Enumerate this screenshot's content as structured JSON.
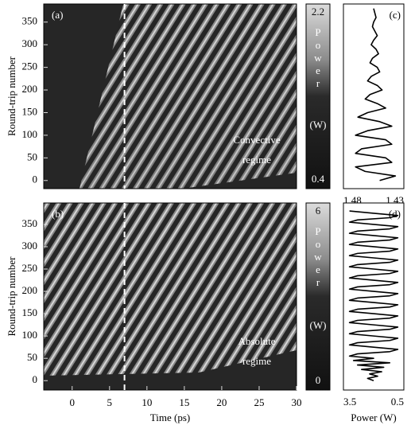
{
  "chart_data": [
    {
      "type": "heatmap",
      "panel_label": "(a)",
      "ylabel": "Round-trip number",
      "xlim": [
        -3.8,
        30
      ],
      "ylim": [
        -18,
        390
      ],
      "yticks": [
        0,
        50,
        100,
        150,
        200,
        250,
        300,
        350
      ],
      "vline": 7,
      "annotation": [
        "Convective",
        "regime"
      ],
      "colorbar": {
        "label": "Power",
        "unit": "(W)",
        "lim": [
          0.4,
          2.2
        ],
        "ticks": [
          2.2,
          0.4
        ]
      }
    },
    {
      "type": "line",
      "panel_label": "(c)",
      "color": "#000000",
      "xlim": [
        1.48,
        1.43
      ],
      "xticks": [
        1.48,
        1.43
      ],
      "ylim": [
        -18,
        390
      ],
      "y": [
        0,
        10,
        20,
        30,
        40,
        50,
        60,
        70,
        80,
        90,
        100,
        110,
        120,
        130,
        140,
        150,
        160,
        170,
        180,
        190,
        200,
        210,
        220,
        230,
        240,
        250,
        260,
        270,
        280,
        290,
        300,
        310,
        320,
        330,
        340,
        350,
        360,
        370,
        380
      ],
      "values": [
        1.45,
        1.437,
        1.462,
        1.47,
        1.44,
        1.445,
        1.47,
        1.465,
        1.44,
        1.445,
        1.47,
        1.46,
        1.44,
        1.45,
        1.468,
        1.46,
        1.445,
        1.452,
        1.462,
        1.458,
        1.448,
        1.452,
        1.46,
        1.457,
        1.45,
        1.452,
        1.458,
        1.456,
        1.451,
        1.453,
        1.457,
        1.455,
        1.452,
        1.454,
        1.456,
        1.455,
        1.453,
        1.454,
        1.455
      ]
    },
    {
      "type": "heatmap",
      "panel_label": "(b)",
      "ylabel": "Round-trip number",
      "xlabel": "Time (ps)",
      "xlim": [
        -3.8,
        30
      ],
      "xticks": [
        0,
        5,
        10,
        15,
        20,
        25,
        30
      ],
      "ylim": [
        -21,
        398
      ],
      "yticks": [
        0,
        50,
        100,
        150,
        200,
        250,
        300,
        350
      ],
      "vline": 7,
      "annotation": [
        "Absolute",
        "regime"
      ],
      "colorbar": {
        "label": "Power",
        "unit": "(W)",
        "lim": [
          0,
          6
        ],
        "ticks": [
          6,
          0
        ]
      }
    },
    {
      "type": "line",
      "panel_label": "(d)",
      "color": "#000000",
      "xlabel": "Power (W)",
      "xlim": [
        3.5,
        0.5
      ],
      "xticks": [
        3.5,
        0.5
      ],
      "ylim": [
        -21,
        398
      ],
      "y": [
        0,
        5,
        10,
        15,
        20,
        25,
        30,
        35,
        40,
        45,
        50,
        55,
        60,
        65,
        70,
        75,
        80,
        85,
        90,
        95,
        100,
        105,
        110,
        115,
        120,
        125,
        130,
        135,
        140,
        145,
        150,
        155,
        160,
        165,
        170,
        175,
        180,
        185,
        190,
        195,
        200,
        205,
        210,
        215,
        220,
        225,
        230,
        235,
        240,
        245,
        250,
        255,
        260,
        265,
        270,
        275,
        280,
        285,
        290,
        295,
        300,
        305,
        310,
        315,
        320,
        325,
        330,
        335,
        340,
        345,
        350,
        355,
        360,
        365,
        370,
        375,
        380
      ],
      "values": [
        2.0,
        2.3,
        1.8,
        2.2,
        1.6,
        2.6,
        1.5,
        2.8,
        1.2,
        3.0,
        2.0,
        3.2,
        2.8,
        1.2,
        0.8,
        2.0,
        3.2,
        2.8,
        1.2,
        0.8,
        2.0,
        3.2,
        2.8,
        1.2,
        0.8,
        2.0,
        3.2,
        2.8,
        1.2,
        0.8,
        2.0,
        3.2,
        2.8,
        1.2,
        0.8,
        2.0,
        3.2,
        2.8,
        1.2,
        0.8,
        2.0,
        3.2,
        2.8,
        1.2,
        0.8,
        2.0,
        3.2,
        2.8,
        1.2,
        0.8,
        2.0,
        3.2,
        2.8,
        1.2,
        0.8,
        2.0,
        3.2,
        2.8,
        1.2,
        0.8,
        2.0,
        3.2,
        2.8,
        1.2,
        0.8,
        2.0,
        3.2,
        2.8,
        1.2,
        0.8,
        2.0,
        3.2,
        2.8,
        1.2,
        0.8,
        2.0,
        3.2
      ]
    }
  ]
}
